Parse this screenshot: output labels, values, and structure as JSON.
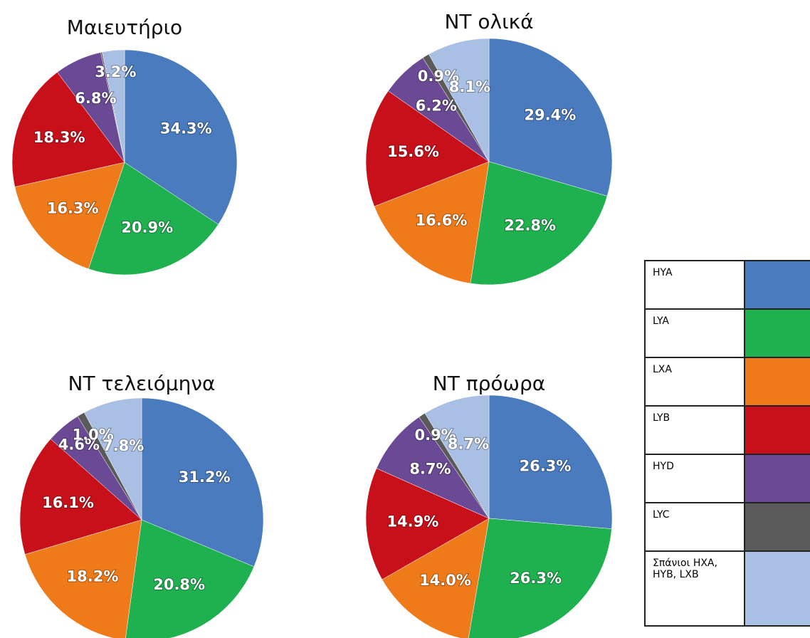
{
  "chart_data": [
    {
      "type": "pie",
      "title": "Μαιευτήριο",
      "values": [
        34.3,
        20.9,
        16.3,
        18.3,
        6.8,
        0.2,
        3.2
      ],
      "value_labels": [
        "34.3%",
        "20.9%",
        "16.3%",
        "18.3%",
        "6.8%",
        null,
        "3.2%"
      ]
    },
    {
      "type": "pie",
      "title": "NT ολικά",
      "values": [
        29.4,
        22.8,
        16.6,
        15.6,
        6.2,
        0.9,
        8.1
      ],
      "value_labels": [
        "29.4%",
        "22.8%",
        "16.6%",
        "15.6%",
        "6.2%",
        "0.9%",
        "8.1%"
      ]
    },
    {
      "type": "pie",
      "title": "NT τελειόμηνα",
      "values": [
        31.2,
        20.8,
        18.2,
        16.1,
        4.6,
        1.0,
        7.8
      ],
      "value_labels": [
        "31.2%",
        "20.8%",
        "18.2%",
        "16.1%",
        "4.6%",
        "1.0%",
        "7.8%"
      ]
    },
    {
      "type": "pie",
      "title": "NT πρόωρα",
      "values": [
        26.3,
        26.3,
        14.0,
        14.9,
        8.7,
        0.9,
        8.7
      ],
      "value_labels": [
        "26.3%",
        "26.3%",
        "14.0%",
        "14.9%",
        "8.7%",
        "0.9%",
        "8.7%"
      ]
    }
  ],
  "legend": {
    "items": [
      {
        "label": "HYA",
        "color": "#4a7bbf"
      },
      {
        "label": "LYA",
        "color": "#1fb04f"
      },
      {
        "label": "LXA",
        "color": "#ef7a1a"
      },
      {
        "label": "LYB",
        "color": "#c8101a"
      },
      {
        "label": "HYD",
        "color": "#6a4a94"
      },
      {
        "label": "LYC",
        "color": "#5a5a5a"
      },
      {
        "label": "Σπάνιοι HXA, HYB, LXB",
        "color": "#a9bfe3"
      }
    ]
  }
}
